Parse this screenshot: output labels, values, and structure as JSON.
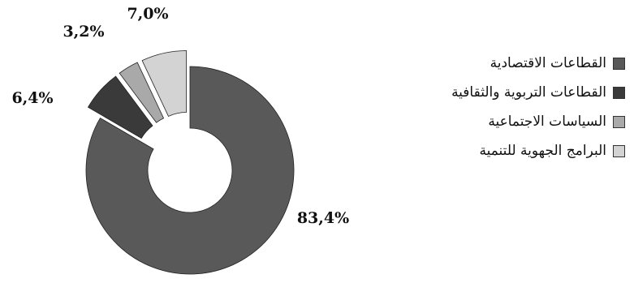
{
  "chart_data": {
    "type": "pie",
    "variant": "donut-exploded",
    "title": "",
    "slices": [
      {
        "label": "القطاعات الاقتصادية",
        "value": 83.4,
        "display": "83,4%",
        "color": "#595959"
      },
      {
        "label": "القطاعات التربوية والثقافية",
        "value": 6.4,
        "display": "6,4%",
        "color": "#3a3a3a"
      },
      {
        "label": "السياسات الاجتماعية",
        "value": 3.2,
        "display": "3,2%",
        "color": "#a9a9a9"
      },
      {
        "label": "البرامج الجهوية للتنمية",
        "value": 7.0,
        "display": "7,0%",
        "color": "#d3d3d3"
      }
    ],
    "legend": {
      "position": "right"
    }
  }
}
